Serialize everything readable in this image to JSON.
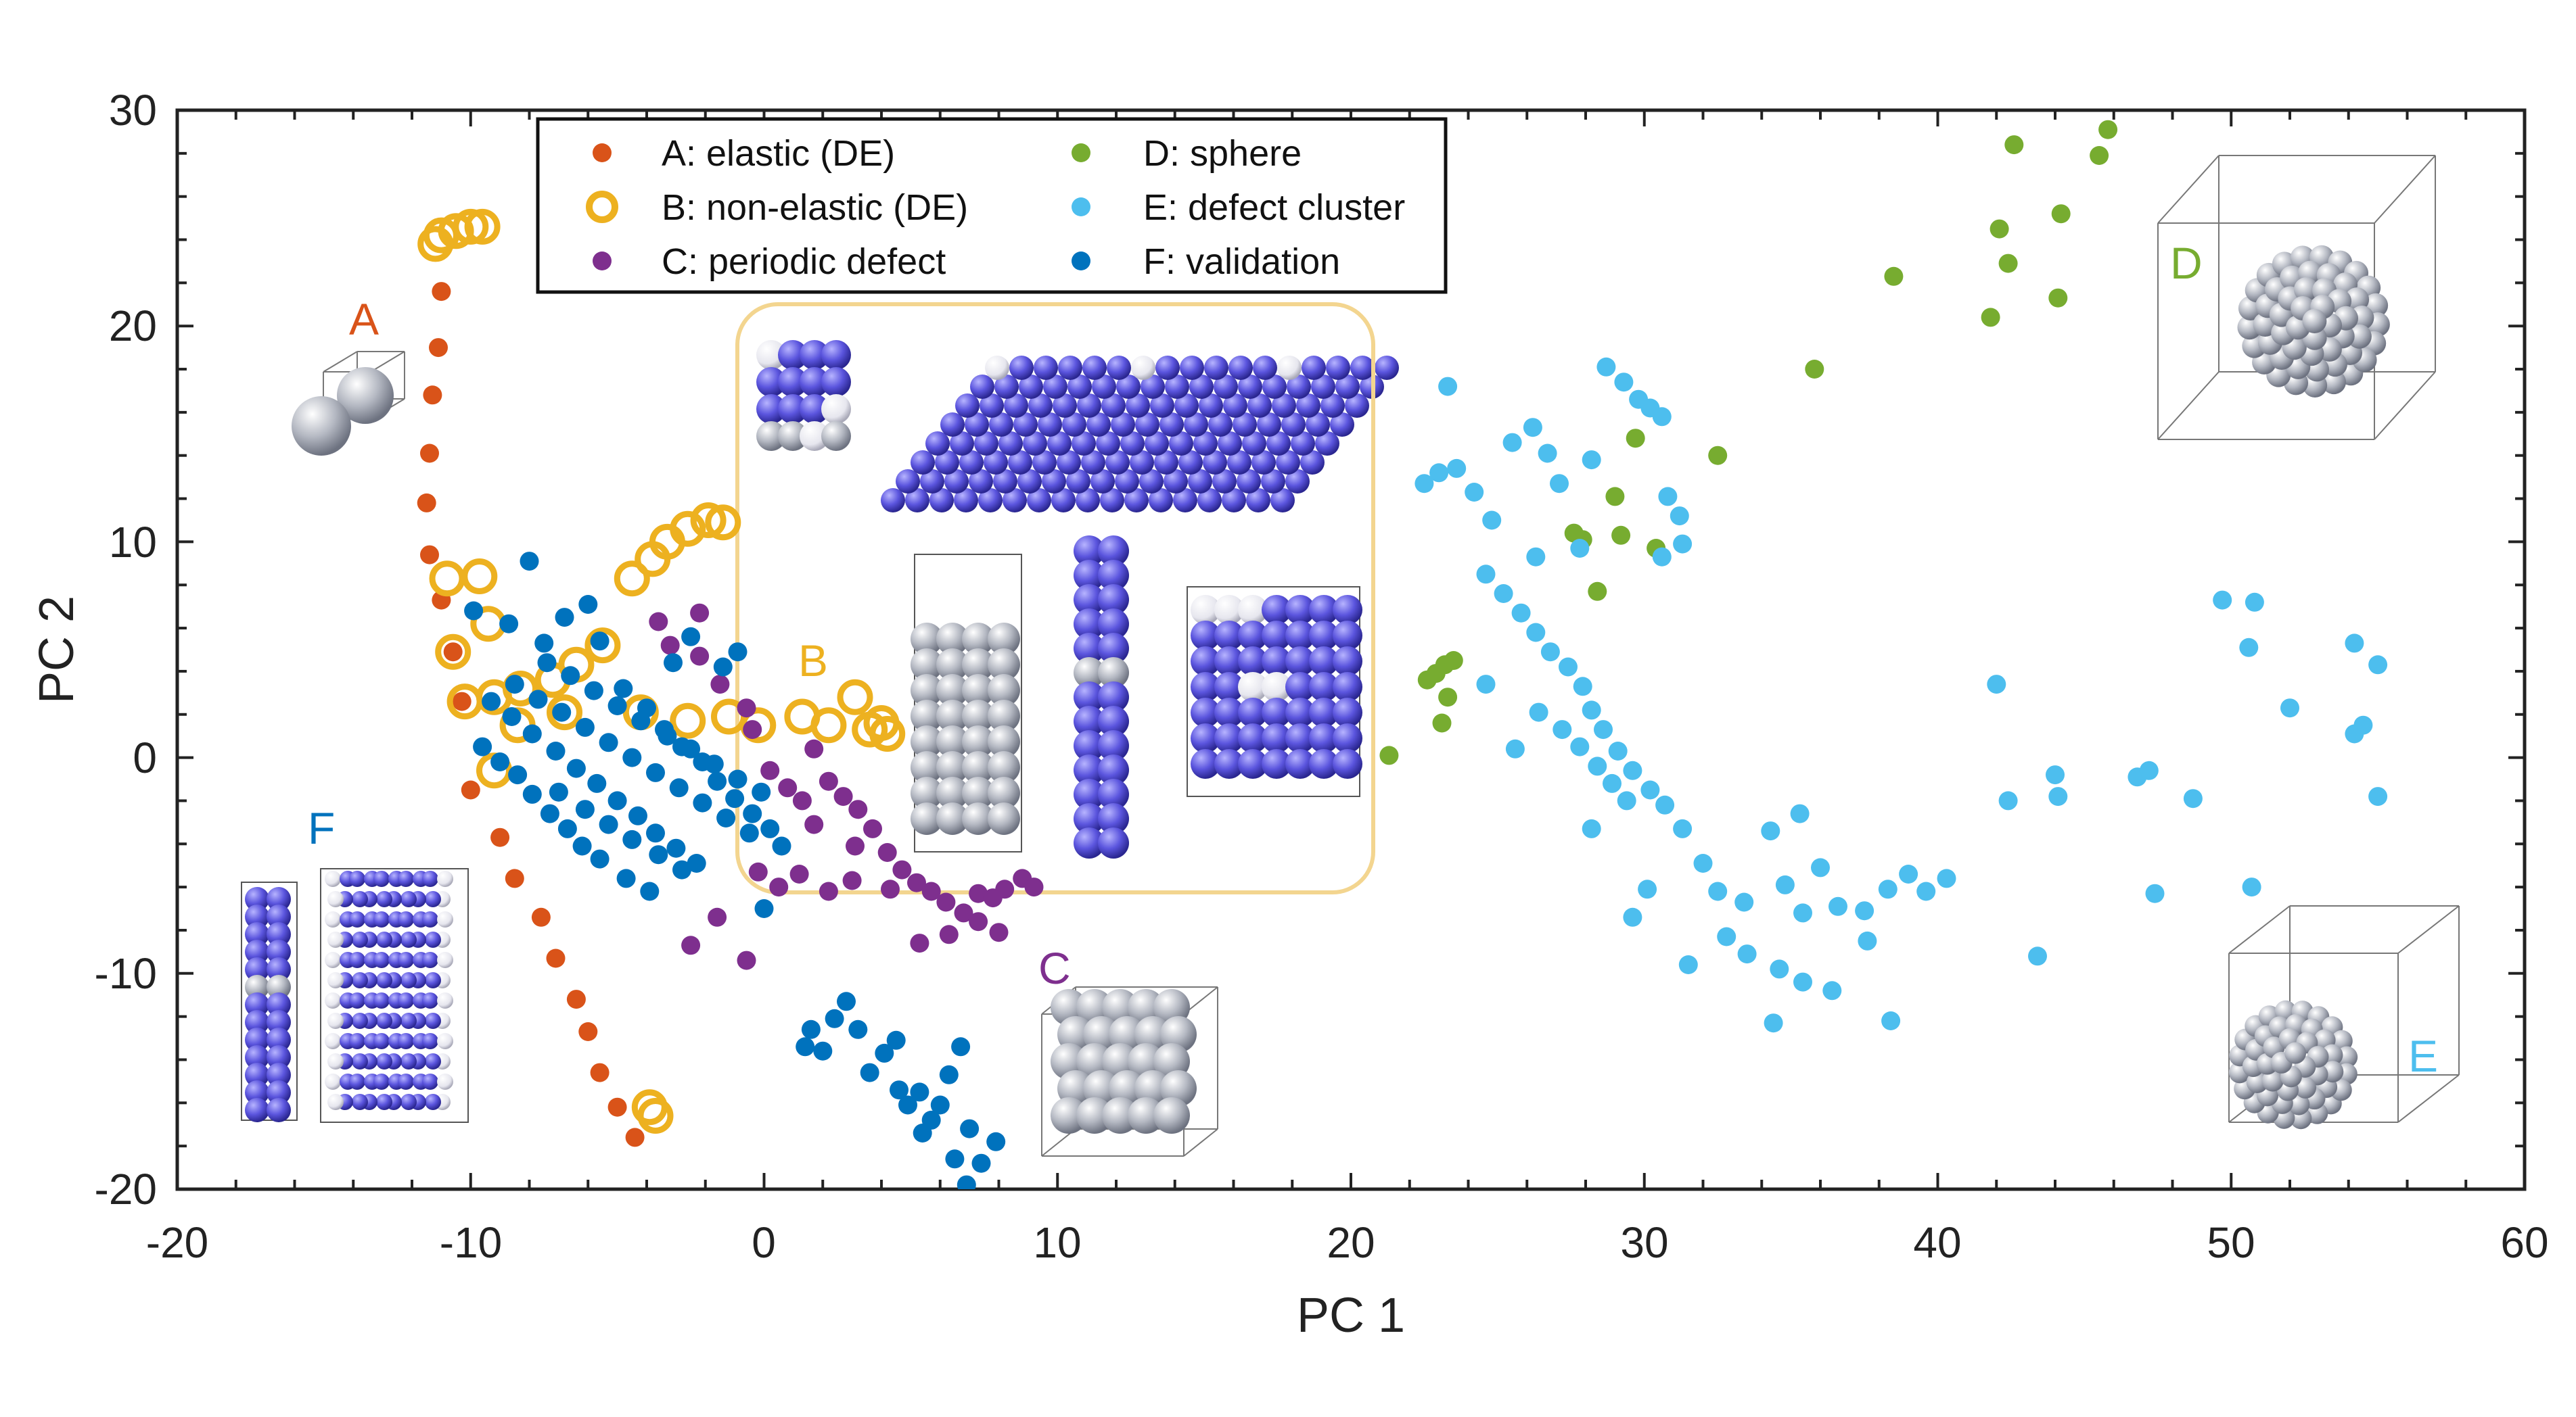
{
  "chart_data": {
    "type": "scatter",
    "title": "",
    "xlabel": "PC 1",
    "ylabel": "PC 2",
    "xlim": [
      -20,
      60
    ],
    "ylim": [
      -20,
      30
    ],
    "xticks": [
      "-20",
      "-10",
      "0",
      "10",
      "20",
      "30",
      "40",
      "50",
      "60"
    ],
    "yticks": [
      "-20",
      "-10",
      "0",
      "10",
      "20",
      "30"
    ],
    "legend_position": "top-left",
    "series": [
      {
        "key": "A",
        "name": "A: elastic (DE)",
        "color": "#d95319",
        "marker": "filled",
        "points": [
          [
            -11,
            21.6
          ],
          [
            -11.1,
            19
          ],
          [
            -11.3,
            16.8
          ],
          [
            -11.4,
            14.1
          ],
          [
            -11.5,
            11.8
          ],
          [
            -11.4,
            9.4
          ],
          [
            -11,
            7.3
          ],
          [
            -10.6,
            4.9
          ],
          [
            -10.3,
            2.6
          ],
          [
            -10,
            -1.5
          ],
          [
            -9,
            -3.7
          ],
          [
            -8.5,
            -5.6
          ],
          [
            -7.6,
            -7.4
          ],
          [
            -7.1,
            -9.3
          ],
          [
            -6.4,
            -11.2
          ],
          [
            -6,
            -12.7
          ],
          [
            -5.6,
            -14.6
          ],
          [
            -5,
            -16.2
          ],
          [
            -4.4,
            -17.6
          ]
        ]
      },
      {
        "key": "B",
        "name": "B: non-elastic (DE)",
        "color": "#edb120",
        "marker": "open",
        "points": [
          [
            -11,
            24.2
          ],
          [
            -10.5,
            24.4
          ],
          [
            -10,
            24.6
          ],
          [
            -9.6,
            24.6
          ],
          [
            -11.2,
            23.8
          ],
          [
            -10.8,
            8.3
          ],
          [
            -9.7,
            8.4
          ],
          [
            -9.4,
            6.2
          ],
          [
            -10.6,
            4.9
          ],
          [
            -10.2,
            2.6
          ],
          [
            -9.2,
            2.8
          ],
          [
            -8.3,
            3.2
          ],
          [
            -7.2,
            3.6
          ],
          [
            -6.4,
            4.3
          ],
          [
            -5.5,
            5.2
          ],
          [
            -4.5,
            8.3
          ],
          [
            -3.8,
            9.2
          ],
          [
            -3.3,
            10
          ],
          [
            -2.6,
            10.6
          ],
          [
            -1.9,
            11
          ],
          [
            -1.4,
            10.9
          ],
          [
            -9.2,
            -0.6
          ],
          [
            -8.4,
            1.5
          ],
          [
            -6.8,
            2.1
          ],
          [
            -4.2,
            2.1
          ],
          [
            -2.6,
            1.7
          ],
          [
            -1.2,
            1.9
          ],
          [
            -0.2,
            1.5
          ],
          [
            1.3,
            1.9
          ],
          [
            2.2,
            1.5
          ],
          [
            3.1,
            2.8
          ],
          [
            3.6,
            1.3
          ],
          [
            4,
            1.6
          ],
          [
            4.2,
            1.1
          ],
          [
            -3.9,
            -16.2
          ],
          [
            -3.7,
            -16.6
          ]
        ]
      },
      {
        "key": "C",
        "name": "C: periodic defect",
        "color": "#7e2f8e",
        "marker": "filled",
        "points": [
          [
            -3.6,
            6.3
          ],
          [
            -3.2,
            5.2
          ],
          [
            -2.2,
            4.7
          ],
          [
            -1.5,
            3.4
          ],
          [
            -0.6,
            2.3
          ],
          [
            0.2,
            -0.6
          ],
          [
            0.8,
            -1.4
          ],
          [
            1.3,
            -2
          ],
          [
            1.7,
            -3.1
          ],
          [
            2.2,
            -1.1
          ],
          [
            2.7,
            -1.8
          ],
          [
            3.2,
            -2.4
          ],
          [
            3.7,
            -3.3
          ],
          [
            4.2,
            -4.4
          ],
          [
            4.7,
            -5.2
          ],
          [
            5.2,
            -5.8
          ],
          [
            5.7,
            -6.2
          ],
          [
            6.2,
            -6.7
          ],
          [
            6.8,
            -7.2
          ],
          [
            7.3,
            -6.3
          ],
          [
            7.8,
            -6.5
          ],
          [
            8.2,
            -6.1
          ],
          [
            8.8,
            -5.6
          ],
          [
            9.2,
            -6
          ],
          [
            -0.2,
            -5.3
          ],
          [
            0.5,
            -6
          ],
          [
            1.2,
            -5.4
          ],
          [
            2.2,
            -6.2
          ],
          [
            3,
            -5.7
          ],
          [
            4.3,
            -6.1
          ],
          [
            5.3,
            -8.6
          ],
          [
            6.3,
            -8.2
          ],
          [
            7.3,
            -7.6
          ],
          [
            8,
            -8.1
          ],
          [
            -2.5,
            -8.7
          ],
          [
            -0.6,
            -9.4
          ],
          [
            -1.6,
            -7.4
          ],
          [
            -0.4,
            1.3
          ],
          [
            1.7,
            0.4
          ],
          [
            3.1,
            -4.1
          ],
          [
            -2.2,
            6.7
          ]
        ]
      },
      {
        "key": "D",
        "name": "D: sphere",
        "color": "#77ac30",
        "marker": "filled",
        "points": [
          [
            21.3,
            0.1
          ],
          [
            22.6,
            3.6
          ],
          [
            22.9,
            3.9
          ],
          [
            23.2,
            4.3
          ],
          [
            23.3,
            2.8
          ],
          [
            23.5,
            4.5
          ],
          [
            23.1,
            1.6
          ],
          [
            27.6,
            10.4
          ],
          [
            27.9,
            10.1
          ],
          [
            28.4,
            7.7
          ],
          [
            29,
            12.1
          ],
          [
            29.2,
            10.3
          ],
          [
            29.7,
            14.8
          ],
          [
            30.4,
            9.7
          ],
          [
            32.5,
            14
          ],
          [
            35.8,
            18
          ],
          [
            38.5,
            22.3
          ],
          [
            41.8,
            20.4
          ],
          [
            42.1,
            24.5
          ],
          [
            42.6,
            28.4
          ],
          [
            42.4,
            22.9
          ],
          [
            44.1,
            21.3
          ],
          [
            44.2,
            25.2
          ],
          [
            45.5,
            27.9
          ],
          [
            45.8,
            29.1
          ]
        ]
      },
      {
        "key": "E",
        "name": "E: defect cluster",
        "color": "#4dbeee",
        "marker": "filled",
        "points": [
          [
            23.3,
            17.2
          ],
          [
            22.5,
            12.7
          ],
          [
            23,
            13.2
          ],
          [
            23.6,
            13.4
          ],
          [
            24.2,
            12.3
          ],
          [
            24.8,
            11
          ],
          [
            25.5,
            14.6
          ],
          [
            26.2,
            15.3
          ],
          [
            26.7,
            14.1
          ],
          [
            27.1,
            12.7
          ],
          [
            27.8,
            9.7
          ],
          [
            28.2,
            13.8
          ],
          [
            28.7,
            18.1
          ],
          [
            29.3,
            17.4
          ],
          [
            29.8,
            16.6
          ],
          [
            30.2,
            16.2
          ],
          [
            30.6,
            15.8
          ],
          [
            30.8,
            12.1
          ],
          [
            31.2,
            11.2
          ],
          [
            30.6,
            9.3
          ],
          [
            31.3,
            9.9
          ],
          [
            24.6,
            8.5
          ],
          [
            25.2,
            7.6
          ],
          [
            25.8,
            6.7
          ],
          [
            26.3,
            5.8
          ],
          [
            26.8,
            4.9
          ],
          [
            27.4,
            4.2
          ],
          [
            27.9,
            3.3
          ],
          [
            28.2,
            2.2
          ],
          [
            28.6,
            1.3
          ],
          [
            29.1,
            0.3
          ],
          [
            29.6,
            -0.6
          ],
          [
            30.2,
            -1.5
          ],
          [
            30.7,
            -2.2
          ],
          [
            26.4,
            2.1
          ],
          [
            27.2,
            1.3
          ],
          [
            27.8,
            0.5
          ],
          [
            28.4,
            -0.4
          ],
          [
            28.9,
            -1.2
          ],
          [
            29.4,
            -2
          ],
          [
            31.3,
            -3.3
          ],
          [
            32,
            -4.9
          ],
          [
            32.5,
            -6.2
          ],
          [
            33.4,
            -6.7
          ],
          [
            34.3,
            -3.4
          ],
          [
            34.8,
            -5.9
          ],
          [
            35.4,
            -7.2
          ],
          [
            36,
            -5.1
          ],
          [
            36.6,
            -6.9
          ],
          [
            37.5,
            -7.1
          ],
          [
            38.3,
            -6.1
          ],
          [
            39,
            -5.4
          ],
          [
            39.6,
            -6.2
          ],
          [
            40.3,
            -5.6
          ],
          [
            32.8,
            -8.3
          ],
          [
            33.5,
            -9.1
          ],
          [
            34.6,
            -9.8
          ],
          [
            35.4,
            -10.4
          ],
          [
            36.4,
            -10.8
          ],
          [
            37.6,
            -8.5
          ],
          [
            38.4,
            -12.2
          ],
          [
            31.5,
            -9.6
          ],
          [
            29.6,
            -7.4
          ],
          [
            30.1,
            -6.1
          ],
          [
            34.4,
            -12.3
          ],
          [
            42,
            3.4
          ],
          [
            42.4,
            -2
          ],
          [
            44.1,
            -1.8
          ],
          [
            44,
            -0.8
          ],
          [
            46.8,
            -0.9
          ],
          [
            47.2,
            -0.6
          ],
          [
            47.4,
            -6.3
          ],
          [
            48.7,
            -1.9
          ],
          [
            49.7,
            7.3
          ],
          [
            50.8,
            7.2
          ],
          [
            50.6,
            5.1
          ],
          [
            52,
            2.3
          ],
          [
            54.2,
            5.3
          ],
          [
            54.2,
            1.1
          ],
          [
            54.5,
            1.5
          ],
          [
            55,
            4.3
          ],
          [
            55,
            -1.8
          ],
          [
            50.7,
            -6
          ],
          [
            43.4,
            -9.2
          ],
          [
            35.3,
            -2.6
          ],
          [
            28.2,
            -3.3
          ],
          [
            25.6,
            0.4
          ],
          [
            24.6,
            3.4
          ],
          [
            26.3,
            9.3
          ]
        ]
      },
      {
        "key": "F",
        "name": "F: validation",
        "color": "#0072bd",
        "marker": "filled",
        "points": [
          [
            -9.6,
            0.5
          ],
          [
            -9,
            -0.2
          ],
          [
            -8.4,
            -0.8
          ],
          [
            -7.9,
            -1.7
          ],
          [
            -7.3,
            -2.6
          ],
          [
            -6.7,
            -3.3
          ],
          [
            -6.2,
            -4.1
          ],
          [
            -5.6,
            -4.7
          ],
          [
            -9.9,
            6.8
          ],
          [
            -8.7,
            6.2
          ],
          [
            -7.5,
            5.3
          ],
          [
            -6.8,
            6.5
          ],
          [
            -6,
            7.1
          ],
          [
            -8,
            9.1
          ],
          [
            -5.6,
            5.4
          ],
          [
            -3.1,
            4.4
          ],
          [
            -2.5,
            5.6
          ],
          [
            -1.4,
            4.2
          ],
          [
            -0.9,
            4.9
          ],
          [
            -4.8,
            3.2
          ],
          [
            -4,
            2.3
          ],
          [
            -3.4,
            1.3
          ],
          [
            -2.8,
            0.5
          ],
          [
            -2.1,
            -0.2
          ],
          [
            -1.6,
            -1.1
          ],
          [
            -1,
            -1.9
          ],
          [
            -0.4,
            -2.6
          ],
          [
            0.2,
            -3.3
          ],
          [
            0.6,
            -4.1
          ],
          [
            -8.6,
            1.9
          ],
          [
            -7.9,
            1.1
          ],
          [
            -7.1,
            0.3
          ],
          [
            -6.4,
            -0.5
          ],
          [
            -5.7,
            -1.2
          ],
          [
            -5,
            -2
          ],
          [
            -4.3,
            -2.7
          ],
          [
            -3.7,
            -3.5
          ],
          [
            -3,
            -4.2
          ],
          [
            -2.3,
            -4.9
          ],
          [
            -9.3,
            2.6
          ],
          [
            -8.5,
            3.4
          ],
          [
            -7.7,
            2.7
          ],
          [
            -6.9,
            2.1
          ],
          [
            -6.1,
            1.4
          ],
          [
            -5.3,
            0.7
          ],
          [
            -4.5,
            0
          ],
          [
            -3.7,
            -0.7
          ],
          [
            -2.9,
            -1.4
          ],
          [
            -2.1,
            -2.1
          ],
          [
            -1.3,
            -2.8
          ],
          [
            -0.5,
            -3.5
          ],
          [
            -7,
            -1.6
          ],
          [
            -6.1,
            -2.4
          ],
          [
            -5.3,
            -3.1
          ],
          [
            -4.5,
            -3.8
          ],
          [
            -3.6,
            -4.5
          ],
          [
            -2.8,
            -5.2
          ],
          [
            -7.4,
            4.4
          ],
          [
            -6.6,
            3.8
          ],
          [
            -5.8,
            3.1
          ],
          [
            -5,
            2.4
          ],
          [
            -4.2,
            1.7
          ],
          [
            -3.3,
            1
          ],
          [
            -2.5,
            0.4
          ],
          [
            -1.7,
            -0.3
          ],
          [
            -0.9,
            -1
          ],
          [
            -0.1,
            -1.6
          ],
          [
            -4.7,
            -5.6
          ],
          [
            -3.9,
            -6.2
          ],
          [
            0,
            -7
          ],
          [
            1.6,
            -12.6
          ],
          [
            2,
            -13.6
          ],
          [
            2.4,
            -12.1
          ],
          [
            2.8,
            -11.3
          ],
          [
            3.2,
            -12.6
          ],
          [
            1.4,
            -13.4
          ],
          [
            3.6,
            -14.6
          ],
          [
            4.1,
            -13.7
          ],
          [
            4.5,
            -13.1
          ],
          [
            4.9,
            -16.1
          ],
          [
            5.3,
            -15.5
          ],
          [
            5.7,
            -16.8
          ],
          [
            6,
            -16.1
          ],
          [
            6.3,
            -14.7
          ],
          [
            6.7,
            -13.4
          ],
          [
            7,
            -17.2
          ],
          [
            6.5,
            -18.6
          ],
          [
            7.4,
            -18.8
          ],
          [
            7.9,
            -17.8
          ],
          [
            6.9,
            -19.8
          ],
          [
            5.4,
            -17.4
          ],
          [
            4.6,
            -15.4
          ]
        ]
      }
    ]
  },
  "insets": {
    "A": "A",
    "B": "B",
    "C": "C",
    "D": "D",
    "E": "E",
    "F": "F"
  }
}
